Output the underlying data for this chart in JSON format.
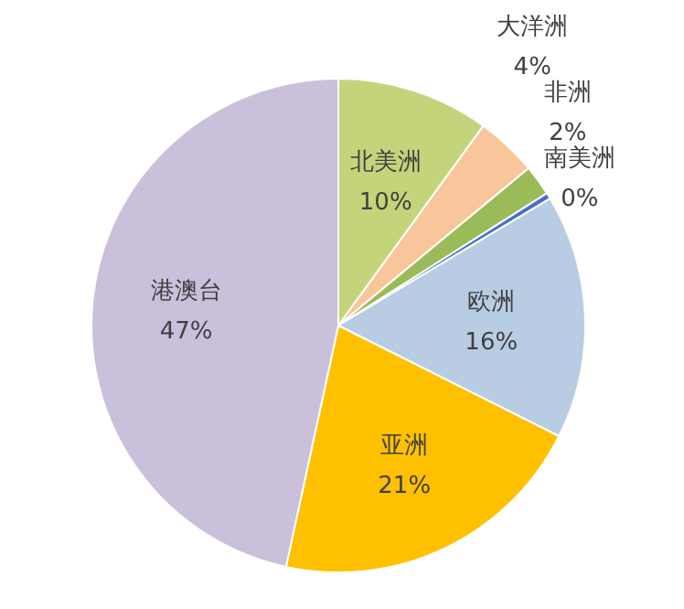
{
  "chart_data": {
    "type": "pie",
    "categories": [
      "北美洲",
      "大洋洲",
      "非洲",
      "南美洲",
      "欧洲",
      "亚洲",
      "港澳台"
    ],
    "values": [
      10,
      4,
      2,
      0.4,
      16,
      21,
      46.6
    ],
    "colors": [
      "#c4d47a",
      "#f9c59a",
      "#9bbb59",
      "#4472c4",
      "#b8cce4",
      "#ffc000",
      "#cbc0dc"
    ],
    "value_labels": [
      "10%",
      "4%",
      "2%",
      "0%",
      "16%",
      "21%",
      "47%"
    ]
  }
}
